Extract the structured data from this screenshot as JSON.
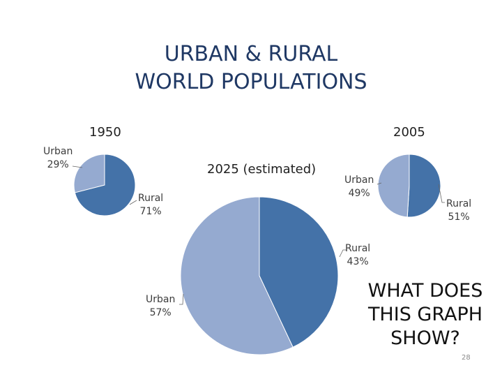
{
  "slide": {
    "title_line1": "URBAN & RURAL",
    "title_line2": "WORLD POPULATIONS",
    "question_line1": "WHAT DOES",
    "question_line2": "THIS GRAPH",
    "question_line3": "SHOW?",
    "page_number": "28"
  },
  "colors": {
    "urban": "#95aad0",
    "rural": "#4472a8",
    "stroke": "#ffffff"
  },
  "chart_data": [
    {
      "type": "pie",
      "title": "1950",
      "slices": [
        {
          "name": "Urban",
          "value": 29,
          "label": "Urban",
          "pct": "29%"
        },
        {
          "name": "Rural",
          "value": 71,
          "label": "Rural",
          "pct": "71%"
        }
      ]
    },
    {
      "type": "pie",
      "title": "2005",
      "slices": [
        {
          "name": "Urban",
          "value": 49,
          "label": "Urban",
          "pct": "49%"
        },
        {
          "name": "Rural",
          "value": 51,
          "label": "Rural",
          "pct": "51%"
        }
      ]
    },
    {
      "type": "pie",
      "title": "2025 (estimated)",
      "slices": [
        {
          "name": "Urban",
          "value": 57,
          "label": "Urban",
          "pct": "57%"
        },
        {
          "name": "Rural",
          "value": 43,
          "label": "Rural",
          "pct": "43%"
        }
      ]
    }
  ]
}
